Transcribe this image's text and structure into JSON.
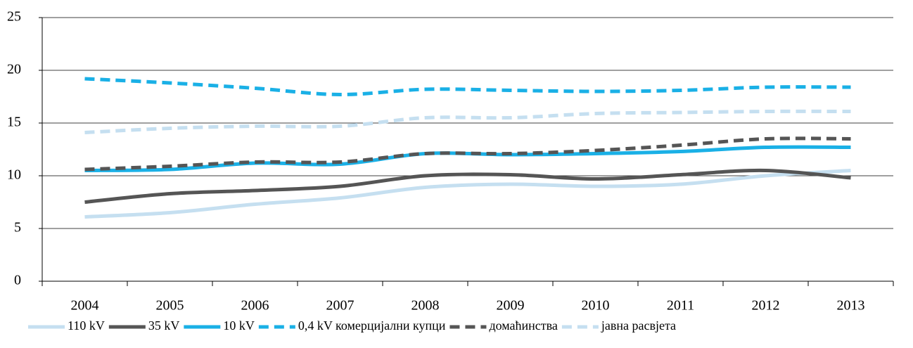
{
  "chart_data": {
    "type": "line",
    "categories": [
      "2004",
      "2005",
      "2006",
      "2007",
      "2008",
      "2009",
      "2010",
      "2011",
      "2012",
      "2013"
    ],
    "series": [
      {
        "name": "110 kV",
        "color": "#c5dff0",
        "dash": false,
        "values": [
          6.1,
          6.5,
          7.3,
          7.9,
          8.9,
          9.2,
          9.0,
          9.2,
          10.0,
          10.5
        ]
      },
      {
        "name": "35 kV",
        "color": "#555555",
        "dash": false,
        "values": [
          7.5,
          8.3,
          8.6,
          9.0,
          10.0,
          10.1,
          9.7,
          10.1,
          10.5,
          9.8
        ]
      },
      {
        "name": "10 kV",
        "color": "#1ab0e6",
        "dash": false,
        "values": [
          10.5,
          10.6,
          11.2,
          11.1,
          12.1,
          12.0,
          12.1,
          12.3,
          12.7,
          12.7
        ]
      },
      {
        "name": "0,4 kV комерцијални купци",
        "color": "#1ab0e6",
        "dash": true,
        "values": [
          19.2,
          18.8,
          18.3,
          17.7,
          18.2,
          18.1,
          18.0,
          18.1,
          18.4,
          18.4
        ]
      },
      {
        "name": "домаћинства",
        "color": "#555555",
        "dash": true,
        "values": [
          10.6,
          10.9,
          11.3,
          11.3,
          12.1,
          12.1,
          12.4,
          12.9,
          13.5,
          13.5
        ]
      },
      {
        "name": "јавна расвјета",
        "color": "#c5dff0",
        "dash": true,
        "values": [
          14.1,
          14.5,
          14.7,
          14.7,
          15.5,
          15.5,
          15.9,
          16.0,
          16.1,
          16.1
        ]
      }
    ],
    "ylim": [
      0,
      25
    ],
    "yticks": [
      0,
      5,
      10,
      15,
      20,
      25
    ],
    "grid": true,
    "legend": "bottom"
  }
}
